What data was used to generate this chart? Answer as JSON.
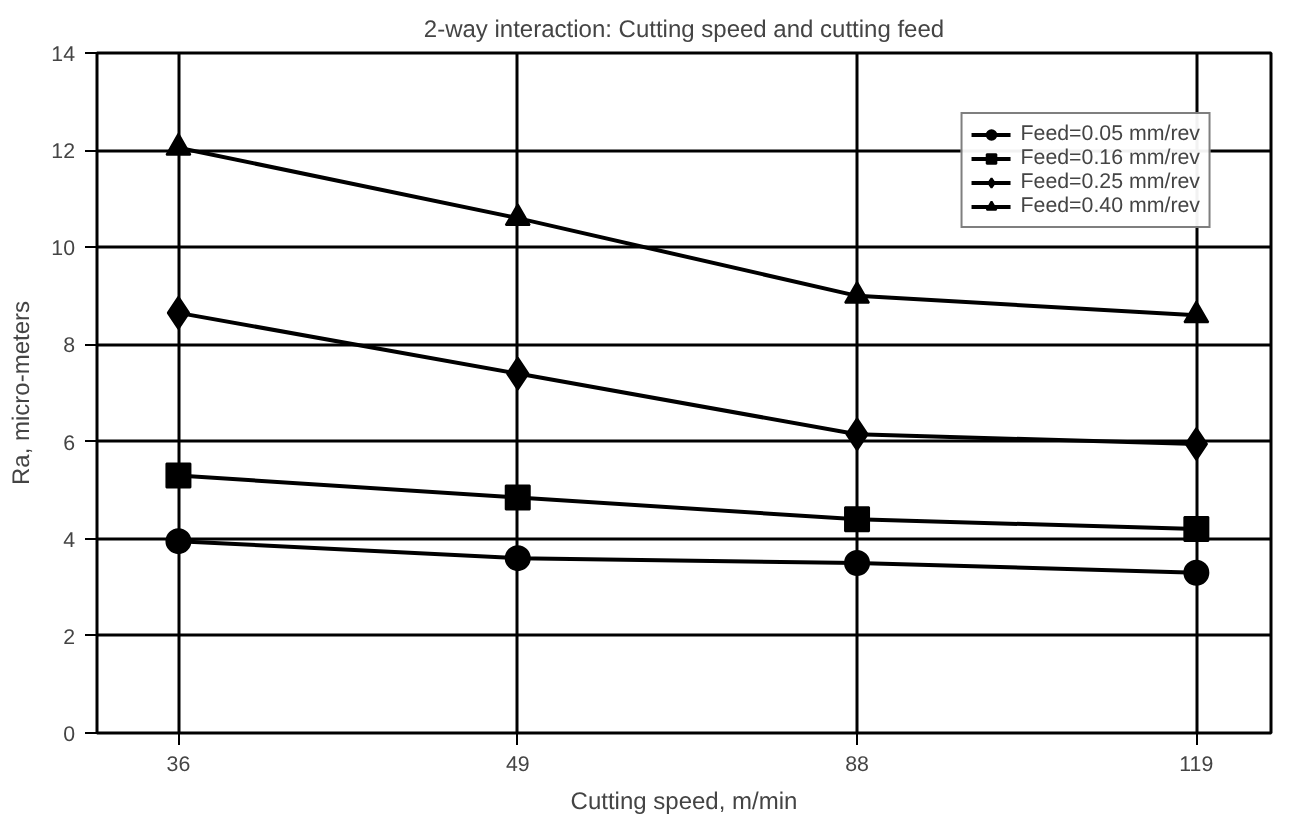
{
  "chart_data": {
    "type": "line",
    "title": "2-way interaction: Cutting speed and cutting feed",
    "xlabel": "Cutting speed, m/min",
    "ylabel": "Ra, micro-meters",
    "categories": [
      "36",
      "49",
      "88",
      "119"
    ],
    "series": [
      {
        "name": "Feed=0.05 mm/rev",
        "color": "#000000",
        "marker": "circle",
        "values": [
          3.95,
          3.6,
          3.5,
          3.3
        ]
      },
      {
        "name": "Feed=0.16 mm/rev",
        "color": "#000000",
        "marker": "square",
        "values": [
          5.3,
          4.85,
          4.4,
          4.2
        ]
      },
      {
        "name": "Feed=0.25 mm/rev",
        "color": "#000000",
        "marker": "diamond",
        "values": [
          8.65,
          7.4,
          6.15,
          5.95
        ]
      },
      {
        "name": "Feed=0.40 mm/rev",
        "color": "#000000",
        "marker": "triangle",
        "values": [
          12.05,
          10.6,
          9.0,
          8.6
        ]
      }
    ],
    "ylim": [
      0,
      14
    ],
    "yticks": [
      0,
      2,
      4,
      6,
      8,
      10,
      12,
      14
    ],
    "grid": true,
    "legend": "top right",
    "line_style": "solid"
  }
}
